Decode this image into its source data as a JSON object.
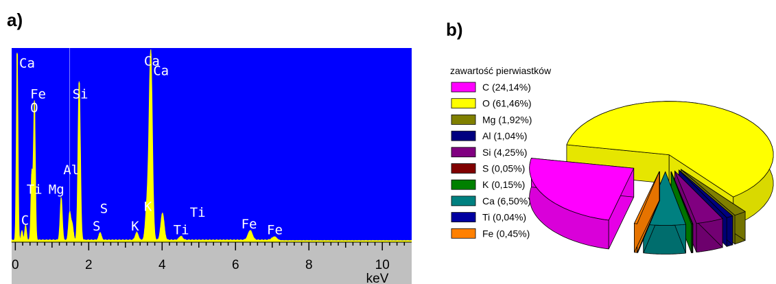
{
  "panels": {
    "a_label": "a)",
    "b_label": "b)"
  },
  "chart_data": [
    {
      "type": "line",
      "xlabel": "keV",
      "xlim": [
        -0.1,
        10.8
      ],
      "ylim": [
        0,
        100
      ],
      "x_ticks": [
        0,
        2,
        4,
        6,
        8,
        10
      ],
      "background_color": "#0000ff",
      "line_color": "#ffff00",
      "axis_bar_color": "#c0c0c0",
      "peaks": [
        {
          "x": 0.05,
          "y": 97
        },
        {
          "x": 0.18,
          "y": 5
        },
        {
          "x": 0.28,
          "y": 8
        },
        {
          "x": 0.45,
          "y": 35
        },
        {
          "x": 0.52,
          "y": 72
        },
        {
          "x": 1.25,
          "y": 22
        },
        {
          "x": 1.48,
          "y": 14
        },
        {
          "x": 1.55,
          "y": 8
        },
        {
          "x": 1.74,
          "y": 82
        },
        {
          "x": 2.31,
          "y": 4
        },
        {
          "x": 3.31,
          "y": 4
        },
        {
          "x": 3.59,
          "y": 18
        },
        {
          "x": 3.69,
          "y": 97
        },
        {
          "x": 4.01,
          "y": 14
        },
        {
          "x": 4.51,
          "y": 2
        },
        {
          "x": 6.4,
          "y": 5
        },
        {
          "x": 7.06,
          "y": 2
        }
      ],
      "peak_labels": [
        {
          "text": "Ca",
          "x": 0.05,
          "y": 90
        },
        {
          "text": "Fe",
          "x": 0.35,
          "y": 74
        },
        {
          "text": "O",
          "x": 0.35,
          "y": 67
        },
        {
          "text": "Si",
          "x": 1.5,
          "y": 74
        },
        {
          "text": "Al",
          "x": 1.25,
          "y": 35
        },
        {
          "text": "Ti",
          "x": 0.25,
          "y": 25
        },
        {
          "text": "Mg",
          "x": 0.85,
          "y": 25
        },
        {
          "text": "C",
          "x": 0.1,
          "y": 9
        },
        {
          "text": "S",
          "x": 2.25,
          "y": 15
        },
        {
          "text": "S",
          "x": 2.05,
          "y": 6
        },
        {
          "text": "K",
          "x": 3.45,
          "y": 16
        },
        {
          "text": "K",
          "x": 3.1,
          "y": 6
        },
        {
          "text": "Ca",
          "x": 3.45,
          "y": 91
        },
        {
          "text": "Ca",
          "x": 3.7,
          "y": 86
        },
        {
          "text": "Ti",
          "x": 4.7,
          "y": 13
        },
        {
          "text": "Ti",
          "x": 4.25,
          "y": 4
        },
        {
          "text": "Fe",
          "x": 6.1,
          "y": 7
        },
        {
          "text": "Fe",
          "x": 6.8,
          "y": 4
        }
      ]
    },
    {
      "type": "pie",
      "legend_title": "zawartość pierwiastków",
      "legend_position": "left",
      "exploded": true,
      "slices": [
        {
          "label": "C (24,14%)",
          "value": 24.14,
          "color": "#ff00ff"
        },
        {
          "label": "O (61,46%)",
          "value": 61.46,
          "color": "#ffff00"
        },
        {
          "label": "Mg (1,92%)",
          "value": 1.92,
          "color": "#808000"
        },
        {
          "label": "Al (1,04%)",
          "value": 1.04,
          "color": "#000080"
        },
        {
          "label": "Si (4,25%)",
          "value": 4.25,
          "color": "#800080"
        },
        {
          "label": "S (0,05%)",
          "value": 0.05,
          "color": "#800000"
        },
        {
          "label": "K (0,15%)",
          "value": 0.15,
          "color": "#008000"
        },
        {
          "label": "Ca (6,50%)",
          "value": 6.5,
          "color": "#008080"
        },
        {
          "label": "Ti (0,04%)",
          "value": 0.04,
          "color": "#0000a0"
        },
        {
          "label": "Fe (0,45%)",
          "value": 0.45,
          "color": "#ff8000"
        }
      ]
    }
  ]
}
